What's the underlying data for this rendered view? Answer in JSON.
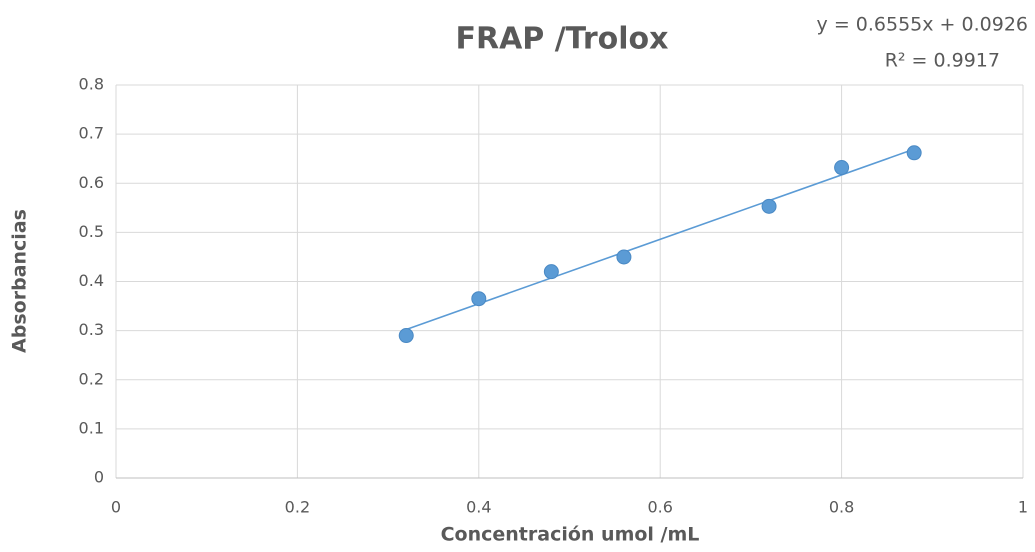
{
  "chart_data": {
    "type": "scatter",
    "title": "FRAP /Trolox",
    "x_label": "Concentración umol /mL",
    "y_label": "Absorbancias",
    "series": [
      {
        "color": "#5b9bd5",
        "x": [
          0.32,
          0.4,
          0.48,
          0.56,
          0.72,
          0.8,
          0.88
        ],
        "values": [
          0.29,
          0.365,
          0.42,
          0.45,
          0.553,
          0.632,
          0.662
        ]
      }
    ],
    "trendline": {
      "slope": 0.6555,
      "intercept": 0.0926,
      "r_squared": 0.9917,
      "equation_label": "y = 0.6555x + 0.0926",
      "r_squared_label": "R² = 0.9917"
    },
    "xlim": [
      0,
      1
    ],
    "xticks": [
      0,
      0.2,
      0.4,
      0.6,
      0.8,
      1
    ],
    "ylim": [
      0,
      0.8
    ],
    "yticks": [
      0,
      0.1,
      0.2,
      0.3,
      0.4,
      0.5,
      0.6,
      0.7,
      0.8
    ],
    "grid": true
  }
}
